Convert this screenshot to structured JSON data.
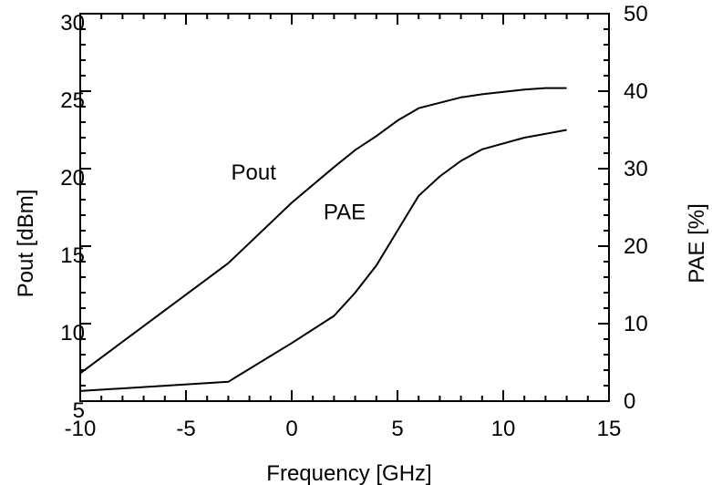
{
  "chart_data": {
    "type": "line",
    "title": "",
    "xlabel": "Frequency [GHz]",
    "ylabel": "Pout [dBm]",
    "y2label": "PAE [%]",
    "xlim": [
      -10,
      15
    ],
    "ylim": [
      5,
      30
    ],
    "y2lim": [
      0,
      50
    ],
    "x_ticks": [
      -10,
      -5,
      0,
      5,
      10,
      15
    ],
    "y_ticks": [
      5,
      10,
      15,
      20,
      25,
      30
    ],
    "y2_ticks": [
      0,
      10,
      20,
      30,
      40,
      50
    ],
    "grid": false,
    "legend": "none",
    "series": [
      {
        "name": "Pout",
        "axis": "left",
        "x": [
          -10,
          -3,
          0,
          2,
          3,
          4,
          5,
          6,
          8,
          9,
          11,
          12,
          13
        ],
        "y": [
          6.8,
          13.9,
          17.8,
          20.1,
          21.2,
          22.1,
          23.1,
          23.9,
          24.6,
          24.8,
          25.1,
          25.2,
          25.2
        ]
      },
      {
        "name": "PAE",
        "axis": "right",
        "x": [
          -10,
          -3,
          0,
          2,
          3,
          4,
          5,
          6,
          7,
          8,
          9,
          11,
          12,
          13
        ],
        "y": [
          1.3,
          2.5,
          7.5,
          11,
          14,
          17.5,
          22,
          26.5,
          29,
          31,
          32.5,
          34,
          34.5,
          35
        ]
      }
    ],
    "annotations": [
      {
        "text": "Pout",
        "x": -1.8,
        "y": 19.3,
        "axis": "left"
      },
      {
        "text": "PAE",
        "x": 2.5,
        "y": 23.5,
        "axis": "right"
      }
    ]
  }
}
